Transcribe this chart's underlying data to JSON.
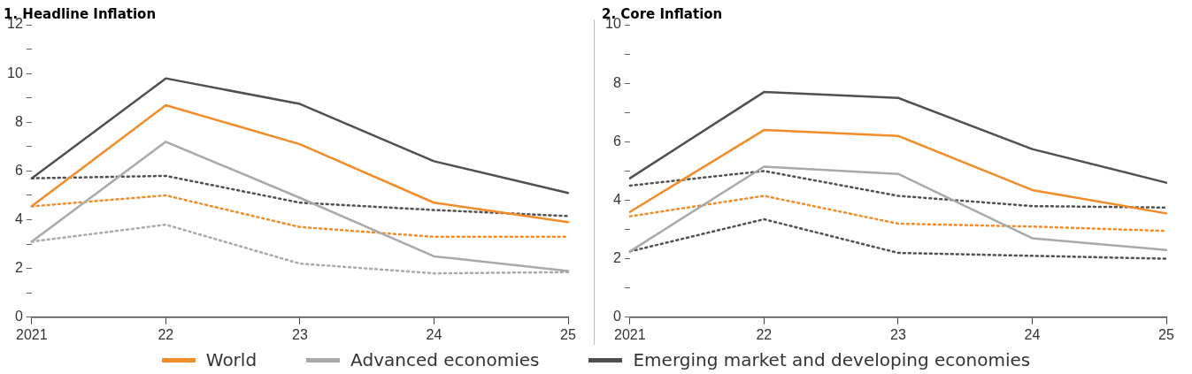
{
  "chart_data": [
    {
      "type": "line",
      "title": "1. Headline Inflation",
      "categories": [
        "2021",
        "22",
        "23",
        "24",
        "25"
      ],
      "ylim": [
        0,
        12
      ],
      "yticks": [
        0,
        {
          "value": 1,
          "label": null
        },
        2,
        {
          "value": 3,
          "label": null
        },
        4,
        {
          "value": 5,
          "label": null
        },
        6,
        {
          "value": 7,
          "label": null
        },
        8,
        {
          "value": 9,
          "label": null
        },
        10,
        {
          "value": 11,
          "label": null
        },
        12
      ],
      "grid": false,
      "legend": "bottom",
      "marker": "none",
      "series": [
        {
          "name": "World",
          "color": "#f28c28",
          "values": [
            4.55,
            8.7,
            7.1,
            4.7,
            3.9
          ]
        },
        {
          "name": "Advanced economies",
          "color": "#a7a9ac",
          "values": [
            3.1,
            7.2,
            4.9,
            2.5,
            1.9
          ]
        },
        {
          "name": "Emerging market and developing economies",
          "color": "#505050",
          "values": [
            5.7,
            9.8,
            8.75,
            6.4,
            5.1
          ]
        },
        {
          "color": "#f28c28",
          "line_style": "dotted",
          "values": [
            4.55,
            5.0,
            3.7,
            3.3,
            3.3
          ]
        },
        {
          "color": "#a7a9ac",
          "line_style": "dotted",
          "values": [
            3.1,
            3.8,
            2.2,
            1.8,
            1.85
          ]
        },
        {
          "color": "#505050",
          "line_style": "dotted",
          "values": [
            5.7,
            5.8,
            4.7,
            4.4,
            4.15
          ]
        }
      ]
    },
    {
      "type": "line",
      "title": "2. Core Inflation",
      "categories": [
        "2021",
        "22",
        "23",
        "24",
        "25"
      ],
      "ylim": [
        0,
        10
      ],
      "yticks": [
        0,
        {
          "value": 1,
          "label": null
        },
        2,
        {
          "value": 3,
          "label": null
        },
        4,
        {
          "value": 5,
          "label": null
        },
        6,
        {
          "value": 7,
          "label": null
        },
        8,
        {
          "value": 9,
          "label": null
        },
        10
      ],
      "grid": false,
      "legend": "bottom",
      "marker": "none",
      "series": [
        {
          "name": "World",
          "color": "#f28c28",
          "values": [
            3.6,
            6.4,
            6.2,
            4.35,
            3.55
          ]
        },
        {
          "name": "Advanced economies",
          "color": "#a7a9ac",
          "values": [
            2.25,
            5.15,
            4.9,
            2.7,
            2.3
          ]
        },
        {
          "name": "Emerging market and developing economies",
          "color": "#505050",
          "values": [
            4.75,
            7.7,
            7.5,
            5.75,
            4.6
          ]
        },
        {
          "color": "#505050",
          "line_style": "dotted",
          "values": [
            4.5,
            5.0,
            4.15,
            3.8,
            3.75
          ]
        },
        {
          "color": "#f28c28",
          "line_style": "dotted",
          "values": [
            3.45,
            4.15,
            3.2,
            3.1,
            2.95
          ]
        },
        {
          "color": "#505050",
          "line_style": "dotted",
          "values": [
            2.25,
            3.35,
            2.2,
            2.1,
            2.0
          ]
        }
      ]
    }
  ]
}
